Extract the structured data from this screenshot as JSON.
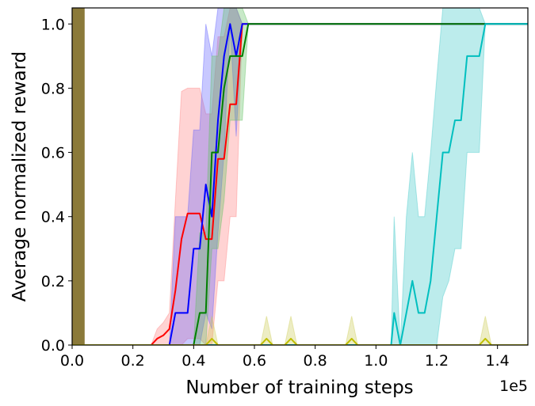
{
  "chart_data": {
    "type": "line",
    "title": "",
    "xlabel": "Number of training steps",
    "ylabel": "Average normalized reward",
    "x_offset_text": "1e5",
    "xlim": [
      0,
      1.5
    ],
    "ylim": [
      0,
      1.05
    ],
    "xticks": [
      "0.0",
      "0.2",
      "0.4",
      "0.6",
      "0.8",
      "1.0",
      "1.2",
      "1.4"
    ],
    "yticks": [
      "0.0",
      "0.2",
      "0.4",
      "0.6",
      "0.8",
      "1.0"
    ],
    "grid": false,
    "legend": null,
    "series": [
      {
        "color": "#a89f6e",
        "fill_color": "#8b7a3a",
        "points": [
          [
            0.0,
            1.05
          ],
          [
            0.04,
            1.05
          ]
        ],
        "band": {
          "x": [
            0.0,
            0.04
          ],
          "lo": [
            0,
            0
          ],
          "hi": [
            1.05,
            1.05
          ]
        }
      },
      {
        "color": "#ff0000",
        "fill_color": "#ff8080",
        "points": [
          [
            0.0,
            0
          ],
          [
            0.26,
            0
          ],
          [
            0.28,
            0.02
          ],
          [
            0.3,
            0.03
          ],
          [
            0.32,
            0.05
          ],
          [
            0.34,
            0.17
          ],
          [
            0.36,
            0.33
          ],
          [
            0.38,
            0.41
          ],
          [
            0.4,
            0.41
          ],
          [
            0.42,
            0.41
          ],
          [
            0.44,
            0.33
          ],
          [
            0.46,
            0.33
          ],
          [
            0.48,
            0.58
          ],
          [
            0.5,
            0.58
          ],
          [
            0.52,
            0.75
          ],
          [
            0.54,
            0.75
          ],
          [
            0.56,
            1.0
          ],
          [
            0.58,
            1.0
          ],
          [
            1.5,
            1.0
          ]
        ],
        "band": {
          "x": [
            0.26,
            0.28,
            0.3,
            0.32,
            0.34,
            0.36,
            0.38,
            0.4,
            0.42,
            0.44,
            0.46,
            0.48,
            0.5,
            0.52,
            0.54,
            0.56,
            0.58
          ],
          "lo": [
            0,
            0,
            0,
            0,
            0,
            0,
            0.02,
            0.02,
            0.02,
            0,
            0,
            0.2,
            0.2,
            0.4,
            0.4,
            1.0,
            1.0
          ],
          "hi": [
            0,
            0.05,
            0.07,
            0.1,
            0.45,
            0.79,
            0.8,
            0.8,
            0.8,
            0.72,
            0.72,
            0.96,
            0.96,
            1.05,
            1.05,
            1.0,
            1.0
          ]
        }
      },
      {
        "color": "#0000ff",
        "fill_color": "#6060ff",
        "points": [
          [
            0.0,
            0
          ],
          [
            0.32,
            0
          ],
          [
            0.34,
            0.1
          ],
          [
            0.36,
            0.1
          ],
          [
            0.38,
            0.1
          ],
          [
            0.4,
            0.3
          ],
          [
            0.42,
            0.3
          ],
          [
            0.44,
            0.5
          ],
          [
            0.46,
            0.4
          ],
          [
            0.48,
            0.7
          ],
          [
            0.5,
            0.9
          ],
          [
            0.52,
            1.0
          ],
          [
            0.54,
            0.9
          ],
          [
            0.56,
            1.0
          ],
          [
            1.5,
            1.0
          ]
        ],
        "band": {
          "x": [
            0.32,
            0.34,
            0.36,
            0.38,
            0.4,
            0.42,
            0.44,
            0.46,
            0.48,
            0.5,
            0.52,
            0.54,
            0.56
          ],
          "lo": [
            0,
            0,
            0,
            0,
            0,
            0,
            0.1,
            0.05,
            0.35,
            0.6,
            1.0,
            0.65,
            1.0
          ],
          "hi": [
            0,
            0.4,
            0.4,
            0.4,
            0.67,
            0.67,
            1.0,
            0.9,
            1.05,
            1.05,
            1.05,
            1.05,
            1.0
          ]
        }
      },
      {
        "color": "#008000",
        "fill_color": "#60c060",
        "points": [
          [
            0.0,
            0
          ],
          [
            0.4,
            0
          ],
          [
            0.42,
            0.1
          ],
          [
            0.44,
            0.1
          ],
          [
            0.46,
            0.6
          ],
          [
            0.48,
            0.6
          ],
          [
            0.5,
            0.8
          ],
          [
            0.52,
            0.9
          ],
          [
            0.54,
            0.9
          ],
          [
            0.56,
            0.9
          ],
          [
            0.58,
            1.0
          ],
          [
            1.5,
            1.0
          ]
        ],
        "band": {
          "x": [
            0.4,
            0.42,
            0.44,
            0.46,
            0.48,
            0.5,
            0.52,
            0.54,
            0.56,
            0.58
          ],
          "lo": [
            0,
            0,
            0,
            0.3,
            0.3,
            0.45,
            0.7,
            0.7,
            0.7,
            1.0
          ],
          "hi": [
            0,
            0.35,
            0.35,
            0.9,
            0.9,
            1.05,
            1.05,
            1.05,
            1.05,
            1.0
          ]
        }
      },
      {
        "color": "#00bfbf",
        "fill_color": "#40c8c8",
        "points": [
          [
            0.0,
            0
          ],
          [
            1.05,
            0
          ],
          [
            1.06,
            0.1
          ],
          [
            1.08,
            0
          ],
          [
            1.1,
            0.1
          ],
          [
            1.12,
            0.2
          ],
          [
            1.14,
            0.1
          ],
          [
            1.16,
            0.1
          ],
          [
            1.18,
            0.2
          ],
          [
            1.2,
            0.4
          ],
          [
            1.22,
            0.6
          ],
          [
            1.24,
            0.6
          ],
          [
            1.26,
            0.7
          ],
          [
            1.28,
            0.7
          ],
          [
            1.3,
            0.9
          ],
          [
            1.32,
            0.9
          ],
          [
            1.34,
            0.9
          ],
          [
            1.36,
            1.0
          ],
          [
            1.5,
            1.0
          ]
        ],
        "band": {
          "x": [
            1.05,
            1.06,
            1.08,
            1.1,
            1.12,
            1.14,
            1.16,
            1.18,
            1.2,
            1.22,
            1.24,
            1.26,
            1.28,
            1.3,
            1.32,
            1.34,
            1.36
          ],
          "lo": [
            0,
            0,
            0,
            0,
            0,
            0,
            0,
            0,
            0,
            0.15,
            0.2,
            0.3,
            0.3,
            0.6,
            0.6,
            0.6,
            1.0
          ],
          "hi": [
            0,
            0.4,
            0,
            0.4,
            0.6,
            0.4,
            0.4,
            0.6,
            0.83,
            1.05,
            1.05,
            1.05,
            1.05,
            1.05,
            1.05,
            1.05,
            1.0
          ]
        }
      },
      {
        "color": "#bfbf00",
        "fill_color": "#cccc55",
        "points": [
          [
            0.0,
            0
          ],
          [
            0.44,
            0
          ],
          [
            0.46,
            0.02
          ],
          [
            0.48,
            0
          ],
          [
            0.62,
            0
          ],
          [
            0.64,
            0.02
          ],
          [
            0.66,
            0
          ],
          [
            0.7,
            0
          ],
          [
            0.72,
            0.02
          ],
          [
            0.74,
            0
          ],
          [
            0.9,
            0
          ],
          [
            0.92,
            0.02
          ],
          [
            0.94,
            0
          ],
          [
            1.34,
            0
          ],
          [
            1.36,
            0.02
          ],
          [
            1.38,
            0
          ],
          [
            1.5,
            0
          ]
        ],
        "band": {
          "x": [
            0.44,
            0.46,
            0.48,
            0.62,
            0.64,
            0.66,
            0.7,
            0.72,
            0.74,
            0.9,
            0.92,
            0.94,
            1.34,
            1.36,
            1.38
          ],
          "lo": [
            0,
            0,
            0,
            0,
            0,
            0,
            0,
            0,
            0,
            0,
            0,
            0,
            0,
            0,
            0
          ],
          "hi": [
            0,
            0.09,
            0,
            0,
            0.09,
            0,
            0,
            0.09,
            0,
            0,
            0.09,
            0,
            0,
            0.09,
            0
          ]
        }
      }
    ]
  }
}
